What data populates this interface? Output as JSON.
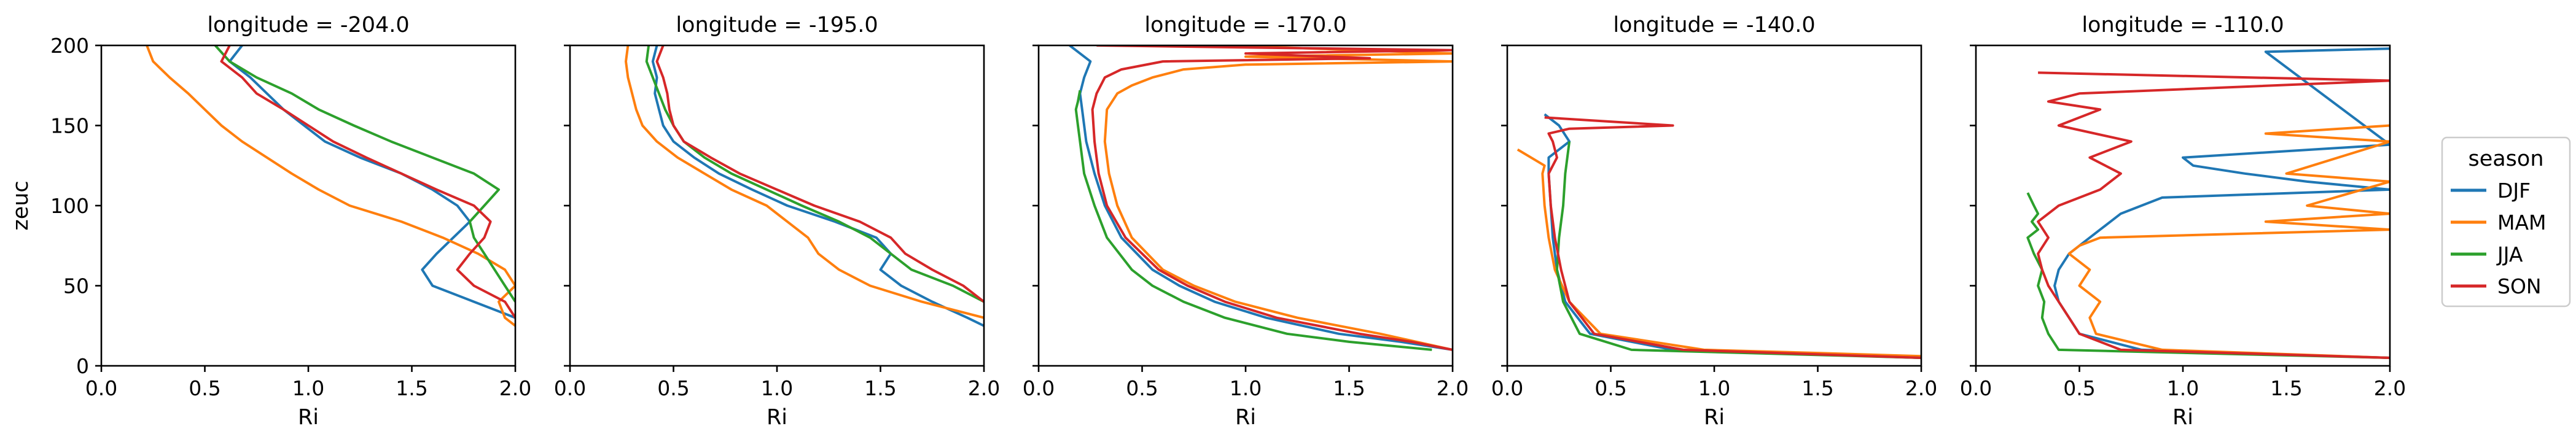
{
  "chart_data": {
    "type": "line",
    "orientation": "vertical-profile",
    "xlabel": "Ri",
    "ylabel": "zeuc",
    "xlim": [
      0.0,
      2.0
    ],
    "ylim": [
      0,
      200
    ],
    "xticks": [
      "0.0",
      "0.5",
      "1.0",
      "1.5",
      "2.0"
    ],
    "yticks": [
      "0",
      "50",
      "100",
      "150",
      "200"
    ],
    "grid": false,
    "legend": {
      "title": "season",
      "placement": "right",
      "entries": [
        "DJF",
        "MAM",
        "JJA",
        "SON"
      ]
    },
    "series_colors": {
      "DJF": "#1f77b4",
      "MAM": "#ff7f0e",
      "JJA": "#2ca02c",
      "SON": "#d62728"
    },
    "panels": [
      {
        "title": "longitude = -204.0",
        "series": [
          {
            "name": "DJF",
            "y": [
              200,
              190,
              180,
              170,
              160,
              150,
              140,
              130,
              120,
              110,
              100,
              90,
              80,
              70,
              60,
              50,
              40,
              30
            ],
            "x": [
              0.68,
              0.62,
              0.72,
              0.8,
              0.88,
              0.98,
              1.08,
              1.25,
              1.45,
              1.6,
              1.72,
              1.78,
              1.7,
              1.62,
              1.55,
              1.6,
              1.8,
              2.0
            ]
          },
          {
            "name": "MAM",
            "y": [
              200,
              190,
              180,
              170,
              160,
              150,
              140,
              130,
              120,
              110,
              100,
              90,
              80,
              70,
              60,
              50,
              40,
              30,
              25
            ],
            "x": [
              0.22,
              0.25,
              0.33,
              0.42,
              0.5,
              0.58,
              0.68,
              0.8,
              0.92,
              1.05,
              1.2,
              1.45,
              1.65,
              1.82,
              1.95,
              2.0,
              1.92,
              1.95,
              2.0
            ]
          },
          {
            "name": "JJA",
            "y": [
              200,
              190,
              180,
              170,
              160,
              150,
              140,
              130,
              120,
              110,
              100,
              90,
              80,
              70,
              60,
              50,
              40
            ],
            "x": [
              0.55,
              0.62,
              0.75,
              0.92,
              1.05,
              1.22,
              1.4,
              1.6,
              1.8,
              1.92,
              1.85,
              1.78,
              1.8,
              1.85,
              1.9,
              1.95,
              2.0
            ]
          },
          {
            "name": "SON",
            "y": [
              200,
              190,
              180,
              170,
              160,
              150,
              140,
              130,
              120,
              110,
              100,
              90,
              80,
              70,
              60,
              50,
              40,
              30
            ],
            "x": [
              0.62,
              0.58,
              0.68,
              0.75,
              0.88,
              1.0,
              1.12,
              1.28,
              1.45,
              1.62,
              1.8,
              1.88,
              1.85,
              1.78,
              1.72,
              1.8,
              1.95,
              2.0
            ]
          }
        ]
      },
      {
        "title": "longitude = -195.0",
        "series": [
          {
            "name": "DJF",
            "y": [
              200,
              190,
              180,
              170,
              160,
              150,
              140,
              130,
              120,
              110,
              100,
              90,
              80,
              70,
              60,
              50,
              40,
              30,
              25
            ],
            "x": [
              0.42,
              0.4,
              0.42,
              0.41,
              0.43,
              0.45,
              0.5,
              0.6,
              0.72,
              0.88,
              1.05,
              1.28,
              1.48,
              1.55,
              1.5,
              1.6,
              1.75,
              1.92,
              2.0
            ]
          },
          {
            "name": "MAM",
            "y": [
              200,
              190,
              180,
              170,
              160,
              150,
              140,
              130,
              120,
              110,
              100,
              90,
              80,
              70,
              60,
              50,
              40,
              30
            ],
            "x": [
              0.28,
              0.27,
              0.28,
              0.3,
              0.32,
              0.35,
              0.42,
              0.52,
              0.65,
              0.78,
              0.95,
              1.05,
              1.15,
              1.2,
              1.3,
              1.45,
              1.7,
              2.0
            ]
          },
          {
            "name": "JJA",
            "y": [
              200,
              190,
              180,
              170,
              160,
              150,
              140,
              130,
              120,
              110,
              100,
              90,
              80,
              70,
              60,
              50,
              40
            ],
            "x": [
              0.38,
              0.37,
              0.4,
              0.43,
              0.46,
              0.5,
              0.55,
              0.65,
              0.78,
              0.95,
              1.12,
              1.3,
              1.45,
              1.55,
              1.65,
              1.85,
              2.0
            ]
          },
          {
            "name": "SON",
            "y": [
              200,
              190,
              180,
              170,
              160,
              150,
              140,
              130,
              120,
              110,
              100,
              90,
              80,
              70,
              60,
              50,
              40
            ],
            "x": [
              0.45,
              0.42,
              0.45,
              0.47,
              0.48,
              0.5,
              0.55,
              0.68,
              0.82,
              1.0,
              1.18,
              1.4,
              1.55,
              1.62,
              1.75,
              1.9,
              2.0
            ]
          }
        ]
      },
      {
        "title": "longitude = -170.0",
        "series": [
          {
            "name": "DJF",
            "y": [
              200,
              195,
              190,
              180,
              170,
              160,
              140,
              120,
              100,
              80,
              60,
              50,
              40,
              30,
              20,
              15,
              10
            ],
            "x": [
              0.15,
              0.2,
              0.25,
              0.22,
              0.2,
              0.21,
              0.23,
              0.27,
              0.32,
              0.4,
              0.55,
              0.68,
              0.85,
              1.1,
              1.45,
              1.75,
              2.0
            ]
          },
          {
            "name": "MAM",
            "y": [
              200,
              195,
              193,
              190,
              188,
              185,
              180,
              175,
              170,
              160,
              140,
              120,
              100,
              80,
              60,
              50,
              40,
              30,
              20,
              10
            ],
            "x": [
              0.9,
              2.0,
              1.0,
              2.0,
              1.0,
              0.7,
              0.55,
              0.45,
              0.38,
              0.33,
              0.32,
              0.34,
              0.38,
              0.45,
              0.6,
              0.75,
              0.95,
              1.25,
              1.65,
              2.0
            ]
          },
          {
            "name": "JJA",
            "y": [
              172,
              165,
              160,
              150,
              140,
              120,
              100,
              80,
              60,
              50,
              40,
              30,
              20,
              15,
              10
            ],
            "x": [
              0.2,
              0.19,
              0.18,
              0.19,
              0.2,
              0.22,
              0.27,
              0.33,
              0.45,
              0.55,
              0.7,
              0.9,
              1.2,
              1.5,
              1.9
            ]
          },
          {
            "name": "SON",
            "y": [
              200,
              197,
              195,
              192,
              190,
              185,
              180,
              170,
              160,
              140,
              120,
              100,
              80,
              60,
              50,
              40,
              30,
              20,
              15,
              10
            ],
            "x": [
              0.28,
              2.0,
              1.0,
              1.6,
              0.6,
              0.4,
              0.32,
              0.28,
              0.26,
              0.27,
              0.29,
              0.33,
              0.42,
              0.58,
              0.72,
              0.9,
              1.15,
              1.55,
              1.8,
              2.0
            ]
          }
        ]
      },
      {
        "title": "longitude = -140.0",
        "series": [
          {
            "name": "DJF",
            "y": [
              157,
              150,
              140,
              130,
              120,
              100,
              80,
              60,
              40,
              20,
              10,
              5
            ],
            "x": [
              0.18,
              0.25,
              0.3,
              0.2,
              0.2,
              0.21,
              0.22,
              0.24,
              0.28,
              0.4,
              0.8,
              2.0
            ]
          },
          {
            "name": "MAM",
            "y": [
              135,
              125,
              120,
              100,
              80,
              60,
              40,
              20,
              10,
              8,
              6
            ],
            "x": [
              0.05,
              0.18,
              0.17,
              0.18,
              0.2,
              0.23,
              0.3,
              0.45,
              0.95,
              1.5,
              2.0
            ]
          },
          {
            "name": "JJA",
            "y": [
              140,
              120,
              100,
              80,
              60,
              40,
              20,
              10,
              5
            ],
            "x": [
              0.3,
              0.28,
              0.27,
              0.25,
              0.24,
              0.27,
              0.35,
              0.6,
              2.0
            ]
          },
          {
            "name": "SON",
            "y": [
              155,
              150,
              148,
              145,
              140,
              130,
              120,
              100,
              80,
              60,
              40,
              20,
              10,
              5
            ],
            "x": [
              0.18,
              0.8,
              0.3,
              0.2,
              0.22,
              0.24,
              0.2,
              0.21,
              0.23,
              0.26,
              0.3,
              0.42,
              0.85,
              2.0
            ]
          }
        ]
      },
      {
        "title": "longitude = -110.0",
        "series": [
          {
            "name": "DJF",
            "y": [
              198,
              196,
              138,
              130,
              125,
              120,
              115,
              110,
              105,
              100,
              95,
              90,
              85,
              80,
              70,
              60,
              50,
              40,
              30,
              20,
              10,
              5
            ],
            "x": [
              2.0,
              1.4,
              2.0,
              1.0,
              1.05,
              1.3,
              1.6,
              2.0,
              0.9,
              0.8,
              0.7,
              0.65,
              0.6,
              0.55,
              0.45,
              0.4,
              0.38,
              0.4,
              0.45,
              0.5,
              0.8,
              2.0
            ]
          },
          {
            "name": "MAM",
            "y": [
              150,
              145,
              140,
              120,
              115,
              100,
              95,
              90,
              85,
              80,
              75,
              70,
              60,
              50,
              40,
              30,
              20,
              10,
              5
            ],
            "x": [
              2.0,
              1.4,
              2.0,
              1.5,
              2.0,
              1.6,
              2.0,
              1.4,
              2.0,
              0.6,
              0.5,
              0.45,
              0.55,
              0.5,
              0.6,
              0.55,
              0.58,
              0.9,
              2.0
            ]
          },
          {
            "name": "JJA",
            "y": [
              108,
              100,
              95,
              90,
              85,
              80,
              70,
              60,
              50,
              40,
              30,
              20,
              10,
              5
            ],
            "x": [
              0.25,
              0.28,
              0.3,
              0.27,
              0.3,
              0.25,
              0.28,
              0.32,
              0.3,
              0.33,
              0.32,
              0.35,
              0.4,
              2.0
            ]
          },
          {
            "name": "SON",
            "y": [
              183,
              178,
              170,
              165,
              160,
              150,
              140,
              130,
              120,
              110,
              100,
              90,
              80,
              70,
              60,
              50,
              40,
              30,
              20,
              10,
              5
            ],
            "x": [
              0.3,
              2.0,
              0.5,
              0.35,
              0.6,
              0.4,
              0.75,
              0.55,
              0.7,
              0.6,
              0.4,
              0.3,
              0.35,
              0.3,
              0.32,
              0.35,
              0.4,
              0.45,
              0.5,
              0.7,
              2.0
            ]
          }
        ]
      }
    ]
  }
}
